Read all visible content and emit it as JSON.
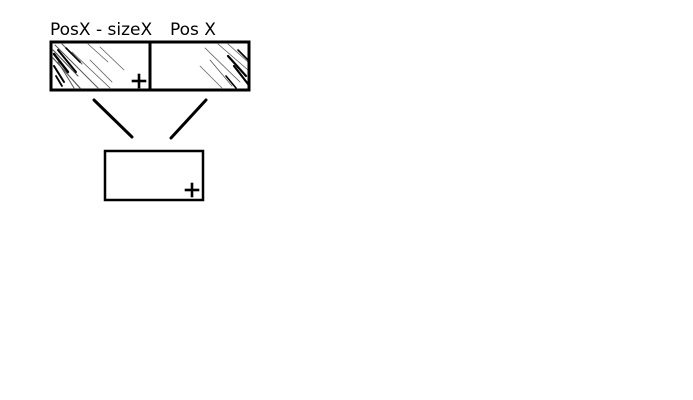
{
  "labels": {
    "left": "PosX - sizeX",
    "right": "Pos X"
  },
  "colors": {
    "ink": "#000000",
    "hatch": "#555555",
    "background": "#ffffff"
  },
  "icons": {
    "origin_marker": "plus-sign"
  }
}
